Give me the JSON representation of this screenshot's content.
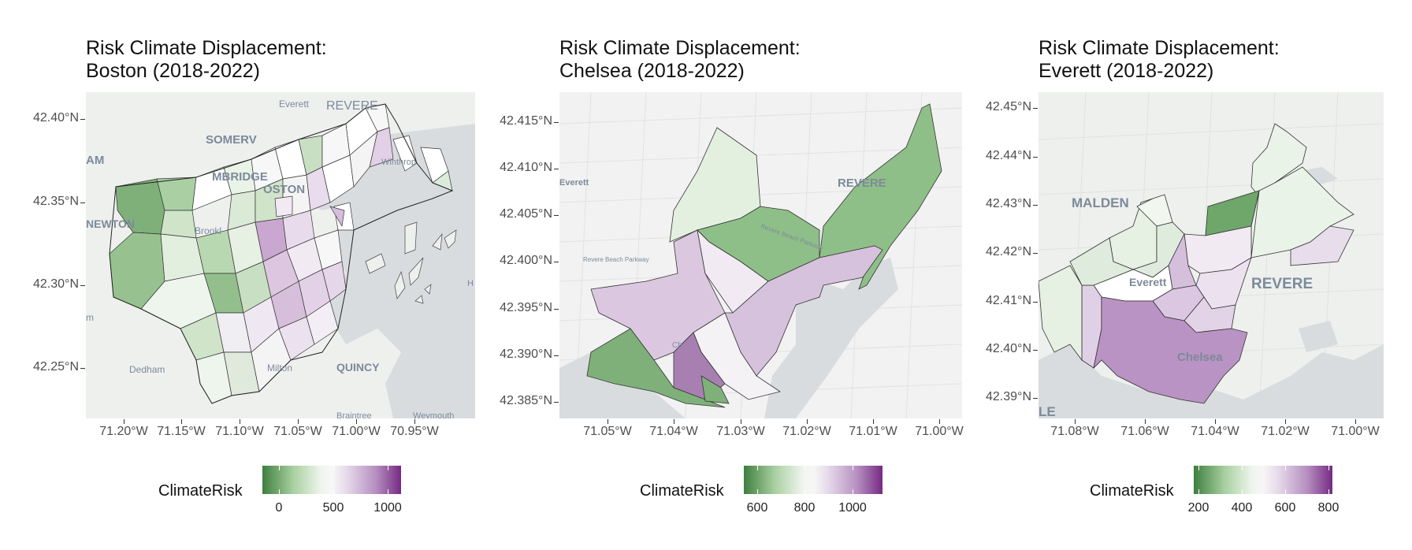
{
  "panels": [
    {
      "title_line1": "Risk Climate Displacement:",
      "title_line2": "Boston (2018-2022)",
      "y_ticks": [
        "42.40°N",
        "42.35°N",
        "42.30°N",
        "42.25°N"
      ],
      "x_ticks": [
        "71.20°W",
        "71.15°W",
        "71.10°W",
        "71.05°W",
        "71.00°W",
        "70.95°W"
      ],
      "places": [
        "Everett",
        "REVERE",
        "SOMERV",
        "Winthrop",
        "AM",
        "MBRIDGE",
        "OSTON",
        "NEWTON",
        "Brookl",
        "m",
        "Dedham",
        "Milton",
        "QUINCY",
        "Braintree",
        "Weymouth",
        "H"
      ],
      "legend": {
        "title": "ClimateRisk",
        "labels": [
          "0",
          "500",
          "1000"
        ]
      }
    },
    {
      "title_line1": "Risk Climate Displacement:",
      "title_line2": "Chelsea (2018-2022)",
      "y_ticks": [
        "42.415°N",
        "42.410°N",
        "42.405°N",
        "42.400°N",
        "42.395°N",
        "42.390°N",
        "42.385°N"
      ],
      "x_ticks": [
        "71.05°W",
        "71.04°W",
        "71.03°W",
        "71.02°W",
        "71.01°W",
        "71.00°W"
      ],
      "places": [
        "Everett",
        "REVERE",
        "Revere Beach Parkway",
        "Revere Beach Parkway",
        "Ch"
      ],
      "legend": {
        "title": "ClimateRisk",
        "labels": [
          "600",
          "800",
          "1000"
        ]
      }
    },
    {
      "title_line1": "Risk Climate Displacement:",
      "title_line2": "Everett (2018-2022)",
      "y_ticks": [
        "42.45°N",
        "42.44°N",
        "42.43°N",
        "42.42°N",
        "42.41°N",
        "42.40°N",
        "42.39°N"
      ],
      "x_ticks": [
        "71.08°W",
        "71.06°W",
        "71.04°W",
        "71.02°W",
        "71.00°W"
      ],
      "places": [
        "MALDEN",
        "Everett",
        "REVERE",
        "Chelsea",
        "LE"
      ],
      "legend": {
        "title": "ClimateRisk",
        "labels": [
          "200",
          "400",
          "600",
          "800"
        ]
      }
    }
  ],
  "colors": {
    "low": "#3f7f3f",
    "mid": "#f7f7f7",
    "high": "#762a83"
  }
}
